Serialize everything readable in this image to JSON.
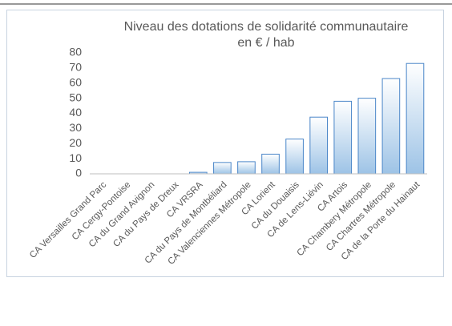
{
  "chart_data": {
    "type": "bar",
    "title": [
      "Niveau des dotations de solidarité communautaire",
      "en € / hab"
    ],
    "categories": [
      "CA Versailles Grand Parc",
      "CA Cergy-Pontoise",
      "CA du Grand Avignon",
      "CA du Pays de Dreux",
      "CA VRSRA",
      "CA du Pays de Montbéliard",
      "CA Valenciennes Métropole",
      "CA Lorient",
      "CA du Douaisis",
      "CA de Lens-Liévin",
      "CA Artois",
      "CA Chambery Métropole",
      "CA Chartres Métropole",
      "CA de la Porte du Hainaut"
    ],
    "values": [
      0,
      0,
      0,
      0,
      1,
      7.5,
      8,
      13,
      23,
      37.5,
      48,
      50,
      63,
      73
    ],
    "color": "#4a86c8",
    "ylim": [
      0,
      80
    ],
    "yticks": [
      0,
      10,
      20,
      30,
      40,
      50,
      60,
      70,
      80
    ],
    "grid": false
  }
}
